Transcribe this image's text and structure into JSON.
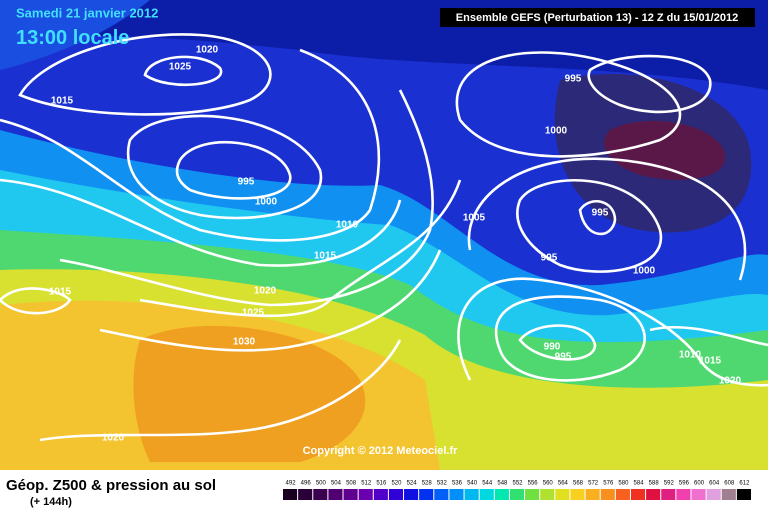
{
  "header": {
    "date": "Samedi 21 janvier 2012",
    "time": "13:00 locale",
    "run": "Ensemble GEFS (Perturbation 13)  -  12 Z du 15/01/2012"
  },
  "copyright": "Copyright © 2012 Meteociel.fr",
  "footer": {
    "title": "Géop. Z500 & pression au sol",
    "lead": "(+ 144h)"
  },
  "legend": {
    "values": [
      "492",
      "496",
      "500",
      "504",
      "508",
      "512",
      "516",
      "520",
      "524",
      "528",
      "532",
      "536",
      "540",
      "544",
      "548",
      "552",
      "556",
      "560",
      "564",
      "568",
      "572",
      "576",
      "580",
      "584",
      "588",
      "592",
      "596",
      "600",
      "604",
      "608",
      "612"
    ],
    "colors": [
      "#1a0020",
      "#2a0038",
      "#3c0050",
      "#500070",
      "#600090",
      "#6a00b0",
      "#5000c8",
      "#3000d8",
      "#1010e0",
      "#0030f0",
      "#0060f8",
      "#0090f8",
      "#00b8f0",
      "#00d8e0",
      "#00e8b0",
      "#30e070",
      "#70e040",
      "#b0e030",
      "#e0e020",
      "#f8d020",
      "#f8b020",
      "#f89020",
      "#f86020",
      "#f03020",
      "#e01040",
      "#e02080",
      "#f040b0",
      "#f070d0",
      "#e0a0e0",
      "#a08090",
      "#000000"
    ]
  },
  "isobar_labels": [
    "1020",
    "1025",
    "1015",
    "995",
    "1000",
    "1010",
    "1015",
    "1020",
    "1025",
    "1030",
    "1020",
    "995",
    "1000",
    "1005",
    "995",
    "995",
    "1000",
    "990",
    "995",
    "1010",
    "1015",
    "1020",
    "1015"
  ]
}
